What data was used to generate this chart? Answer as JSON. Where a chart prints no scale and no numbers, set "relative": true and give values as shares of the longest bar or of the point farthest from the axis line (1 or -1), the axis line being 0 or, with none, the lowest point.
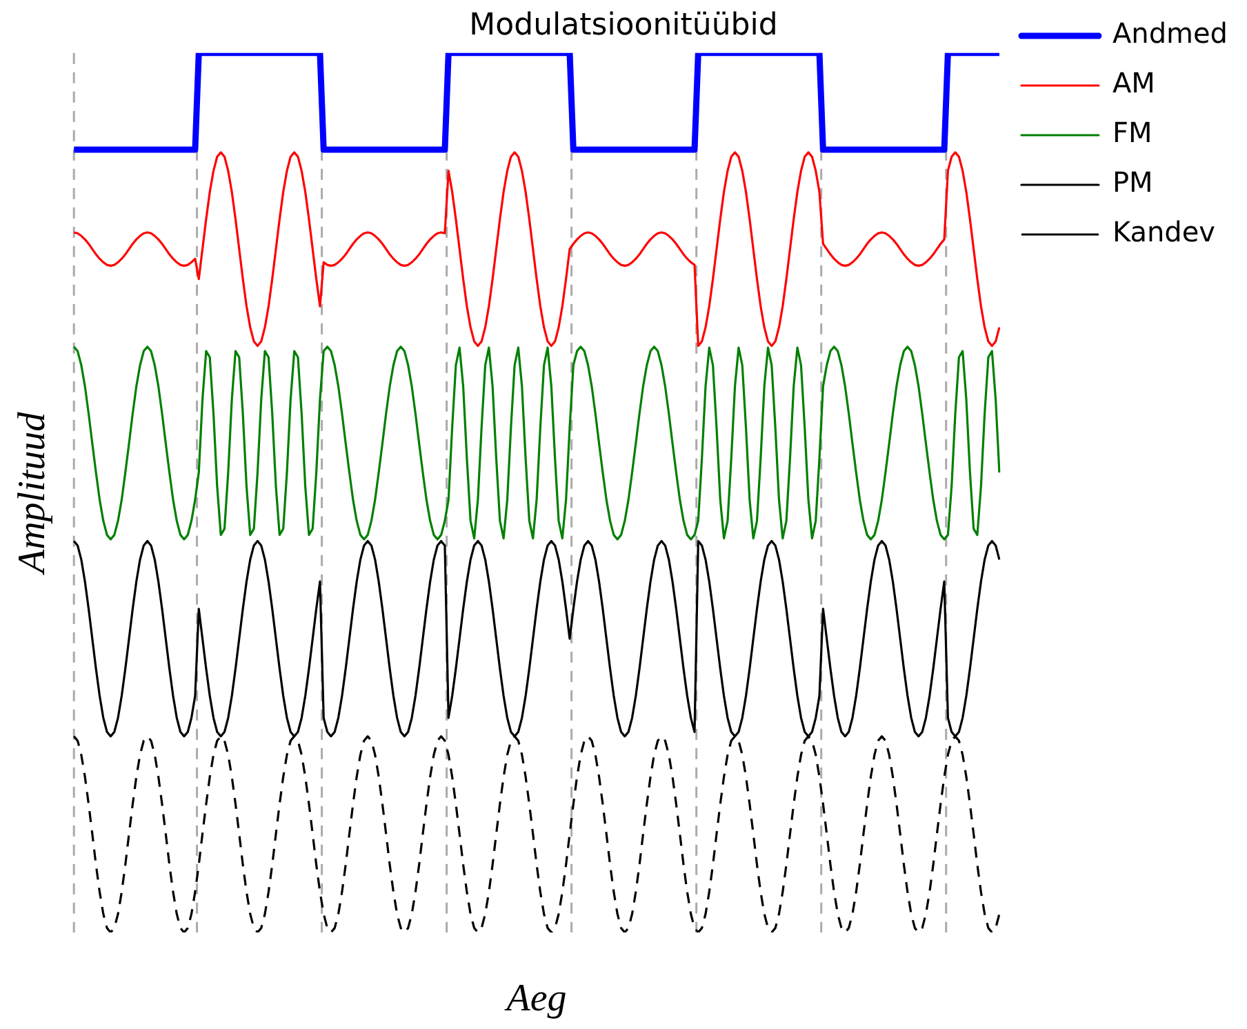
{
  "chart_data": {
    "type": "line",
    "title": "Modulatsioonitüübid",
    "xlabel": "Aeg",
    "ylabel": "Amplituud",
    "relative": true,
    "grid": false,
    "legend": "right",
    "marker": "none",
    "line_style": "solid",
    "categories": [
      null,
      null,
      null,
      null,
      null,
      null,
      null,
      null,
      null,
      null,
      null,
      null,
      null,
      null,
      null,
      null,
      null,
      null,
      null,
      null,
      null,
      null,
      null,
      null,
      null,
      null,
      null,
      null,
      null,
      null,
      null,
      null,
      null,
      null,
      null,
      null,
      null,
      null,
      null,
      null,
      null,
      null,
      null,
      null,
      null,
      null,
      null,
      null,
      null,
      null,
      null,
      null,
      null,
      null,
      null,
      null,
      null,
      null,
      null,
      null,
      null,
      null,
      null,
      null,
      null,
      null,
      null,
      null,
      null,
      null,
      null,
      null,
      null,
      null,
      null,
      null,
      null,
      null,
      null,
      null,
      null,
      null,
      null,
      null,
      null,
      null,
      null,
      null,
      null,
      null,
      null,
      null,
      null,
      null,
      null,
      null,
      null,
      null,
      null,
      null,
      null,
      null,
      null,
      null,
      null,
      null,
      null,
      null,
      null,
      null,
      null,
      null,
      null,
      null,
      null,
      null,
      null,
      null,
      null,
      null,
      null,
      null,
      null,
      null,
      null,
      null,
      null,
      null,
      null,
      null,
      null,
      null,
      null,
      null,
      null,
      null,
      null,
      null,
      null,
      null,
      null,
      null,
      null,
      null,
      null,
      null,
      null,
      null,
      null,
      null,
      null,
      null,
      null,
      null,
      null,
      null,
      null,
      null,
      null,
      null,
      null,
      null,
      null,
      null,
      null,
      null,
      null,
      null,
      null,
      null,
      null,
      null,
      null,
      null,
      null,
      null,
      null,
      null,
      null,
      null,
      null,
      null,
      null,
      null,
      null,
      null,
      null,
      null,
      null,
      null,
      null,
      null,
      null,
      null,
      null,
      null,
      null,
      null,
      null,
      null,
      null,
      null,
      null,
      null,
      null,
      null,
      null,
      null,
      null,
      null,
      null,
      null,
      null,
      null,
      null,
      null,
      null,
      null,
      null,
      null,
      null,
      null,
      null,
      null,
      null,
      null,
      null,
      null,
      null,
      null,
      null,
      null,
      null,
      null,
      null,
      null,
      null,
      null,
      null,
      null,
      null,
      null,
      null,
      null,
      null,
      null,
      null,
      null,
      null,
      null,
      null,
      null,
      null
    ],
    "series": [
      {
        "name": "Andmed",
        "color": "#0000ff",
        "values": [
          0.89,
          0.89,
          0.89,
          0.89,
          0.89,
          0.89,
          0.89,
          0.89,
          0.89,
          0.89,
          0.89,
          0.89,
          0.89,
          0.89,
          0.89,
          0.89,
          0.89,
          0.89,
          0.89,
          0.89,
          0.89,
          0.89,
          0.89,
          0.89,
          0.89,
          0.89,
          0.89,
          0.89,
          0.89,
          0.89,
          0.89,
          0.89,
          0.89,
          0.89,
          1,
          1,
          1,
          1,
          1,
          1,
          1,
          1,
          1,
          1,
          1,
          1,
          1,
          1,
          1,
          1,
          1,
          1,
          1,
          1,
          1,
          1,
          1,
          1,
          1,
          1,
          1,
          1,
          1,
          1,
          1,
          1,
          1,
          1,
          0.89,
          0.89,
          0.89,
          0.89,
          0.89,
          0.89,
          0.89,
          0.89,
          0.89,
          0.89,
          0.89,
          0.89,
          0.89,
          0.89,
          0.89,
          0.89,
          0.89,
          0.89,
          0.89,
          0.89,
          0.89,
          0.89,
          0.89,
          0.89,
          0.89,
          0.89,
          0.89,
          0.89,
          0.89,
          0.89,
          0.89,
          0.89,
          0.89,
          0.89,
          1,
          1,
          1,
          1,
          1,
          1,
          1,
          1,
          1,
          1,
          1,
          1,
          1,
          1,
          1,
          1,
          1,
          1,
          1,
          1,
          1,
          1,
          1,
          1,
          1,
          1,
          1,
          1,
          1,
          1,
          1,
          1,
          1,
          1,
          0.89,
          0.89,
          0.89,
          0.89,
          0.89,
          0.89,
          0.89,
          0.89,
          0.89,
          0.89,
          0.89,
          0.89,
          0.89,
          0.89,
          0.89,
          0.89,
          0.89,
          0.89,
          0.89,
          0.89,
          0.89,
          0.89,
          0.89,
          0.89,
          0.89,
          0.89,
          0.89,
          0.89,
          0.89,
          0.89,
          0.89,
          0.89,
          0.89,
          0.89,
          1,
          1,
          1,
          1,
          1,
          1,
          1,
          1,
          1,
          1,
          1,
          1,
          1,
          1,
          1,
          1,
          1,
          1,
          1,
          1,
          1,
          1,
          1,
          1,
          1,
          1,
          1,
          1,
          1,
          1,
          1,
          1,
          1,
          1,
          0.89,
          0.89,
          0.89,
          0.89,
          0.89,
          0.89,
          0.89,
          0.89,
          0.89,
          0.89,
          0.89,
          0.89,
          0.89,
          0.89,
          0.89,
          0.89,
          0.89,
          0.89,
          0.89,
          0.89,
          0.89,
          0.89,
          0.89,
          0.89,
          0.89,
          0.89,
          0.89,
          0.89,
          0.89,
          0.89,
          0.89,
          0.89,
          0.89,
          0.89,
          1,
          1,
          1,
          1,
          1,
          1,
          1,
          1,
          1,
          1,
          1,
          1,
          1,
          1,
          1
        ]
      },
      {
        "name": "AM",
        "color": "#ff0000",
        "values": [
          0.796,
          0.795,
          0.792,
          0.788,
          0.783,
          0.777,
          0.771,
          0.766,
          0.762,
          0.759,
          0.758,
          0.759,
          0.762,
          0.766,
          0.771,
          0.777,
          0.783,
          0.788,
          0.792,
          0.795,
          0.796,
          0.795,
          0.792,
          0.788,
          0.783,
          0.777,
          0.771,
          0.766,
          0.762,
          0.759,
          0.758,
          0.759,
          0.762,
          0.766,
          0.743,
          0.777,
          0.811,
          0.842,
          0.866,
          0.882,
          0.887,
          0.882,
          0.866,
          0.842,
          0.811,
          0.777,
          0.743,
          0.712,
          0.688,
          0.672,
          0.667,
          0.672,
          0.688,
          0.712,
          0.743,
          0.777,
          0.811,
          0.842,
          0.866,
          0.882,
          0.887,
          0.882,
          0.866,
          0.842,
          0.811,
          0.777,
          0.743,
          0.712,
          0.762,
          0.759,
          0.758,
          0.759,
          0.762,
          0.766,
          0.771,
          0.777,
          0.783,
          0.788,
          0.792,
          0.795,
          0.796,
          0.795,
          0.792,
          0.788,
          0.783,
          0.777,
          0.771,
          0.766,
          0.762,
          0.759,
          0.758,
          0.759,
          0.762,
          0.766,
          0.771,
          0.777,
          0.783,
          0.788,
          0.792,
          0.795,
          0.796,
          0.795,
          0.866,
          0.842,
          0.811,
          0.777,
          0.743,
          0.712,
          0.688,
          0.672,
          0.667,
          0.672,
          0.688,
          0.712,
          0.743,
          0.777,
          0.811,
          0.842,
          0.866,
          0.882,
          0.887,
          0.882,
          0.866,
          0.842,
          0.811,
          0.777,
          0.743,
          0.712,
          0.688,
          0.672,
          0.667,
          0.672,
          0.688,
          0.712,
          0.743,
          0.777,
          0.783,
          0.788,
          0.792,
          0.795,
          0.796,
          0.795,
          0.792,
          0.788,
          0.783,
          0.777,
          0.771,
          0.766,
          0.762,
          0.759,
          0.758,
          0.759,
          0.762,
          0.766,
          0.771,
          0.777,
          0.783,
          0.788,
          0.792,
          0.795,
          0.796,
          0.795,
          0.792,
          0.788,
          0.783,
          0.777,
          0.771,
          0.766,
          0.762,
          0.759,
          0.667,
          0.672,
          0.688,
          0.712,
          0.743,
          0.777,
          0.811,
          0.842,
          0.866,
          0.882,
          0.887,
          0.882,
          0.866,
          0.842,
          0.811,
          0.777,
          0.743,
          0.712,
          0.688,
          0.672,
          0.667,
          0.672,
          0.688,
          0.712,
          0.743,
          0.777,
          0.811,
          0.842,
          0.866,
          0.882,
          0.887,
          0.882,
          0.866,
          0.842,
          0.783,
          0.777,
          0.771,
          0.766,
          0.762,
          0.759,
          0.758,
          0.759,
          0.762,
          0.766,
          0.771,
          0.777,
          0.783,
          0.788,
          0.792,
          0.795,
          0.796,
          0.795,
          0.792,
          0.788,
          0.783,
          0.777,
          0.771,
          0.766,
          0.762,
          0.759,
          0.758,
          0.759,
          0.762,
          0.766,
          0.771,
          0.777,
          0.783,
          0.788,
          0.866,
          0.882,
          0.887,
          0.882,
          0.866,
          0.842,
          0.811,
          0.777,
          0.743,
          0.712,
          0.688,
          0.672,
          0.667,
          0.672,
          0.688
        ]
      },
      {
        "name": "FM",
        "color": "#008000",
        "values": [
          0.666,
          0.661,
          0.645,
          0.621,
          0.59,
          0.556,
          0.523,
          0.492,
          0.468,
          0.452,
          0.447,
          0.452,
          0.468,
          0.492,
          0.523,
          0.556,
          0.59,
          0.621,
          0.645,
          0.661,
          0.666,
          0.661,
          0.645,
          0.621,
          0.59,
          0.556,
          0.523,
          0.492,
          0.468,
          0.452,
          0.447,
          0.452,
          0.468,
          0.492,
          0.523,
          0.606,
          0.661,
          0.654,
          0.59,
          0.507,
          0.452,
          0.459,
          0.523,
          0.606,
          0.661,
          0.654,
          0.59,
          0.507,
          0.452,
          0.459,
          0.523,
          0.606,
          0.661,
          0.654,
          0.59,
          0.507,
          0.452,
          0.459,
          0.523,
          0.606,
          0.661,
          0.654,
          0.59,
          0.507,
          0.452,
          0.459,
          0.523,
          0.606,
          0.661,
          0.666,
          0.661,
          0.645,
          0.621,
          0.59,
          0.556,
          0.523,
          0.492,
          0.468,
          0.452,
          0.447,
          0.452,
          0.468,
          0.492,
          0.523,
          0.556,
          0.59,
          0.621,
          0.645,
          0.661,
          0.666,
          0.661,
          0.645,
          0.621,
          0.59,
          0.556,
          0.523,
          0.492,
          0.468,
          0.452,
          0.447,
          0.452,
          0.468,
          0.492,
          0.574,
          0.645,
          0.665,
          0.621,
          0.539,
          0.468,
          0.448,
          0.492,
          0.574,
          0.645,
          0.665,
          0.621,
          0.539,
          0.468,
          0.448,
          0.492,
          0.574,
          0.645,
          0.665,
          0.621,
          0.539,
          0.468,
          0.448,
          0.492,
          0.574,
          0.645,
          0.665,
          0.621,
          0.539,
          0.468,
          0.448,
          0.492,
          0.574,
          0.645,
          0.661,
          0.666,
          0.661,
          0.645,
          0.621,
          0.59,
          0.556,
          0.523,
          0.492,
          0.468,
          0.452,
          0.447,
          0.452,
          0.468,
          0.492,
          0.523,
          0.556,
          0.59,
          0.621,
          0.645,
          0.661,
          0.666,
          0.661,
          0.645,
          0.621,
          0.59,
          0.556,
          0.523,
          0.492,
          0.468,
          0.452,
          0.447,
          0.452,
          0.468,
          0.539,
          0.621,
          0.665,
          0.645,
          0.574,
          0.492,
          0.448,
          0.468,
          0.539,
          0.621,
          0.665,
          0.645,
          0.574,
          0.492,
          0.448,
          0.468,
          0.539,
          0.621,
          0.665,
          0.645,
          0.574,
          0.492,
          0.448,
          0.468,
          0.539,
          0.621,
          0.665,
          0.645,
          0.574,
          0.492,
          0.448,
          0.468,
          0.539,
          0.621,
          0.645,
          0.661,
          0.666,
          0.661,
          0.645,
          0.621,
          0.59,
          0.556,
          0.523,
          0.492,
          0.468,
          0.452,
          0.447,
          0.452,
          0.468,
          0.492,
          0.523,
          0.556,
          0.59,
          0.621,
          0.645,
          0.661,
          0.666,
          0.661,
          0.645,
          0.621,
          0.59,
          0.556,
          0.523,
          0.492,
          0.468,
          0.452,
          0.447,
          0.452,
          0.507,
          0.59,
          0.654,
          0.661,
          0.606,
          0.523,
          0.459,
          0.452,
          0.507,
          0.59,
          0.654,
          0.661,
          0.606,
          0.523
        ]
      },
      {
        "name": "PM",
        "color": "#000000",
        "values": [
          0.445,
          0.44,
          0.424,
          0.399,
          0.368,
          0.334,
          0.3,
          0.269,
          0.244,
          0.228,
          0.223,
          0.228,
          0.244,
          0.269,
          0.3,
          0.334,
          0.368,
          0.399,
          0.424,
          0.44,
          0.445,
          0.44,
          0.424,
          0.399,
          0.368,
          0.334,
          0.3,
          0.269,
          0.244,
          0.228,
          0.223,
          0.228,
          0.244,
          0.269,
          0.368,
          0.334,
          0.3,
          0.269,
          0.244,
          0.228,
          0.223,
          0.228,
          0.244,
          0.269,
          0.3,
          0.334,
          0.368,
          0.399,
          0.424,
          0.44,
          0.445,
          0.44,
          0.424,
          0.399,
          0.368,
          0.334,
          0.3,
          0.269,
          0.244,
          0.228,
          0.223,
          0.228,
          0.244,
          0.269,
          0.3,
          0.334,
          0.368,
          0.399,
          0.244,
          0.228,
          0.223,
          0.228,
          0.244,
          0.269,
          0.3,
          0.334,
          0.368,
          0.399,
          0.424,
          0.44,
          0.445,
          0.44,
          0.424,
          0.399,
          0.368,
          0.334,
          0.3,
          0.269,
          0.244,
          0.228,
          0.223,
          0.228,
          0.244,
          0.269,
          0.3,
          0.334,
          0.368,
          0.399,
          0.424,
          0.44,
          0.445,
          0.44,
          0.244,
          0.269,
          0.3,
          0.334,
          0.368,
          0.399,
          0.424,
          0.44,
          0.445,
          0.44,
          0.424,
          0.399,
          0.368,
          0.334,
          0.3,
          0.269,
          0.244,
          0.228,
          0.223,
          0.228,
          0.244,
          0.269,
          0.3,
          0.334,
          0.368,
          0.399,
          0.424,
          0.44,
          0.445,
          0.44,
          0.424,
          0.399,
          0.368,
          0.334,
          0.368,
          0.399,
          0.424,
          0.44,
          0.445,
          0.44,
          0.424,
          0.399,
          0.368,
          0.334,
          0.3,
          0.269,
          0.244,
          0.228,
          0.223,
          0.228,
          0.244,
          0.269,
          0.3,
          0.334,
          0.368,
          0.399,
          0.424,
          0.44,
          0.445,
          0.44,
          0.424,
          0.399,
          0.368,
          0.334,
          0.3,
          0.269,
          0.244,
          0.228,
          0.445,
          0.44,
          0.424,
          0.399,
          0.368,
          0.334,
          0.3,
          0.269,
          0.244,
          0.228,
          0.223,
          0.228,
          0.244,
          0.269,
          0.3,
          0.334,
          0.368,
          0.399,
          0.424,
          0.44,
          0.445,
          0.44,
          0.424,
          0.399,
          0.368,
          0.334,
          0.3,
          0.269,
          0.244,
          0.228,
          0.223,
          0.228,
          0.244,
          0.269,
          0.368,
          0.334,
          0.3,
          0.269,
          0.244,
          0.228,
          0.223,
          0.228,
          0.244,
          0.269,
          0.3,
          0.334,
          0.368,
          0.399,
          0.424,
          0.44,
          0.445,
          0.44,
          0.424,
          0.399,
          0.368,
          0.334,
          0.3,
          0.269,
          0.244,
          0.228,
          0.223,
          0.228,
          0.244,
          0.269,
          0.3,
          0.334,
          0.368,
          0.399,
          0.244,
          0.228,
          0.223,
          0.228,
          0.244,
          0.269,
          0.3,
          0.334,
          0.368,
          0.399,
          0.424,
          0.44,
          0.445,
          0.44,
          0.424
        ]
      },
      {
        "name": "Kandev",
        "color": "#000000",
        "line_style": "dashed",
        "values": [
          0.223,
          0.218,
          0.202,
          0.177,
          0.146,
          0.112,
          0.077,
          0.046,
          0.021,
          0.005,
          0,
          0.005,
          0.021,
          0.046,
          0.077,
          0.112,
          0.146,
          0.177,
          0.202,
          0.218,
          0.223,
          0.218,
          0.202,
          0.177,
          0.146,
          0.112,
          0.077,
          0.046,
          0.021,
          0.005,
          0,
          0.005,
          0.021,
          0.046,
          0.077,
          0.112,
          0.146,
          0.177,
          0.202,
          0.218,
          0.223,
          0.218,
          0.202,
          0.177,
          0.146,
          0.112,
          0.077,
          0.046,
          0.021,
          0.005,
          0,
          0.005,
          0.021,
          0.046,
          0.077,
          0.112,
          0.146,
          0.177,
          0.202,
          0.218,
          0.223,
          0.218,
          0.202,
          0.177,
          0.146,
          0.112,
          0.077,
          0.046,
          0.021,
          0.005,
          0,
          0.005,
          0.021,
          0.046,
          0.077,
          0.112,
          0.146,
          0.177,
          0.202,
          0.218,
          0.223,
          0.218,
          0.202,
          0.177,
          0.146,
          0.112,
          0.077,
          0.046,
          0.021,
          0.005,
          0,
          0.005,
          0.021,
          0.046,
          0.077,
          0.112,
          0.146,
          0.177,
          0.202,
          0.218,
          0.223,
          0.218,
          0.202,
          0.177,
          0.146,
          0.112,
          0.077,
          0.046,
          0.021,
          0.005,
          0,
          0.005,
          0.021,
          0.046,
          0.077,
          0.112,
          0.146,
          0.177,
          0.202,
          0.218,
          0.223,
          0.218,
          0.202,
          0.177,
          0.146,
          0.112,
          0.077,
          0.046,
          0.021,
          0.005,
          0,
          0.005,
          0.021,
          0.046,
          0.077,
          0.112,
          0.146,
          0.177,
          0.202,
          0.218,
          0.223,
          0.218,
          0.202,
          0.177,
          0.146,
          0.112,
          0.077,
          0.046,
          0.021,
          0.005,
          0,
          0.005,
          0.021,
          0.046,
          0.077,
          0.112,
          0.146,
          0.177,
          0.202,
          0.218,
          0.223,
          0.218,
          0.202,
          0.177,
          0.146,
          0.112,
          0.077,
          0.046,
          0.021,
          0.005,
          0,
          0.005,
          0.021,
          0.046,
          0.077,
          0.112,
          0.146,
          0.177,
          0.202,
          0.218,
          0.223,
          0.218,
          0.202,
          0.177,
          0.146,
          0.112,
          0.077,
          0.046,
          0.021,
          0.005,
          0,
          0.005,
          0.021,
          0.046,
          0.077,
          0.112,
          0.146,
          0.177,
          0.202,
          0.218,
          0.223,
          0.218,
          0.202,
          0.177,
          0.146,
          0.112,
          0.077,
          0.046,
          0.021,
          0.005,
          0,
          0.005,
          0.021,
          0.046,
          0.077,
          0.112,
          0.146,
          0.177,
          0.202,
          0.218,
          0.223,
          0.218,
          0.202,
          0.177,
          0.146,
          0.112,
          0.077,
          0.046,
          0.021,
          0.005,
          0,
          0.005,
          0.021,
          0.046,
          0.077,
          0.112,
          0.146,
          0.177,
          0.202,
          0.218,
          0.223,
          0.218,
          0.202,
          0.177,
          0.146,
          0.112,
          0.077,
          0.046,
          0.021,
          0.005,
          0,
          0.005,
          0.021
        ]
      }
    ]
  }
}
